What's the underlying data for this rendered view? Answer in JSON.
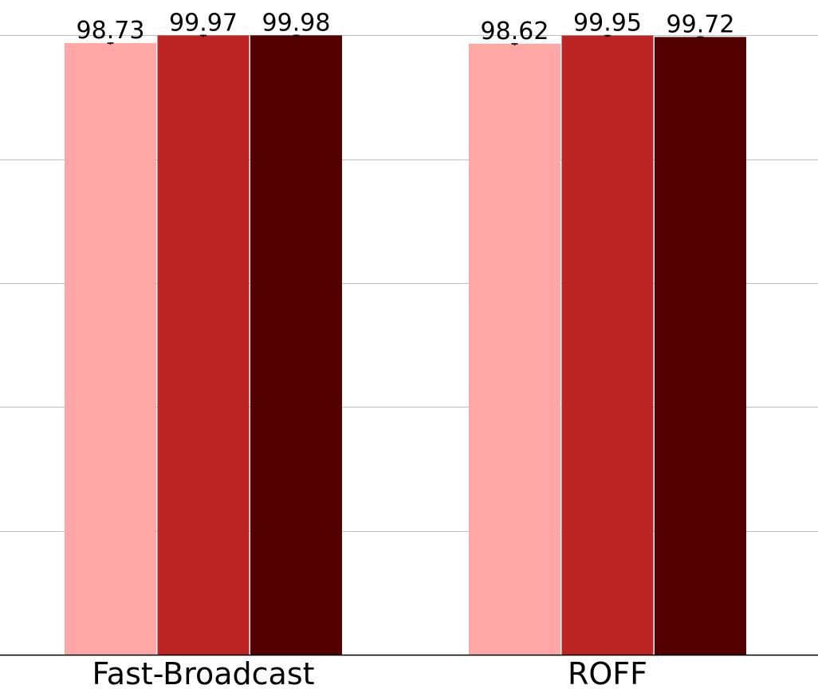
{
  "chart_data": {
    "type": "bar",
    "categories": [
      "Fast-Broadcast",
      "ROFF"
    ],
    "series": [
      {
        "values": [
          98.73,
          98.62
        ],
        "color": "#ffa6a6"
      },
      {
        "values": [
          99.97,
          99.95
        ],
        "color": "#bd2424"
      },
      {
        "values": [
          99.98,
          99.72
        ],
        "color": "#520000"
      }
    ],
    "value_labels": [
      [
        "98.73",
        "98.62"
      ],
      [
        "99.97",
        "99.95"
      ],
      [
        "99.98",
        "99.72"
      ]
    ],
    "error_bars": true,
    "ylim": [
      0,
      100
    ],
    "grid": "horizontal",
    "grid_values": [
      20,
      40,
      60,
      80,
      100
    ],
    "y_tick_labels_visible": false,
    "title": "",
    "xlabel": "",
    "ylabel": ""
  }
}
